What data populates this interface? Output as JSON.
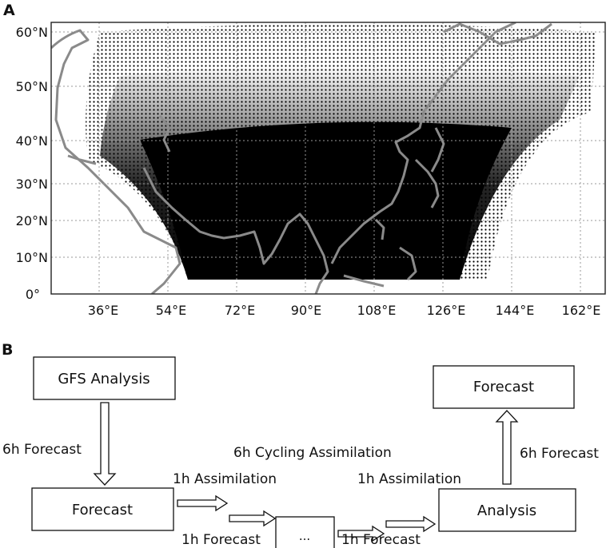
{
  "panel_a": {
    "letter": "A",
    "lat_labels": [
      "60°N",
      "50°N",
      "40°N",
      "30°N",
      "20°N",
      "10°N",
      "0°"
    ],
    "lon_labels": [
      "36°E",
      "54°E",
      "72°E",
      "90°E",
      "108°E",
      "126°E",
      "144°E",
      "162°E"
    ],
    "colors": {
      "domain": "#000000",
      "coast": "#8a8a8a",
      "grid": "#9a9a9a"
    }
  },
  "panel_b": {
    "letter": "B",
    "boxes": {
      "gfs": "GFS Analysis",
      "forecast_left": "Forecast",
      "dots": "...",
      "analysis": "Analysis",
      "forecast_top": "Forecast"
    },
    "labels": {
      "six_h_forecast_left": "6h Forecast",
      "cycling": "6h Cycling Assimilation",
      "assim1": "1h Assimilation",
      "assim2": "1h Assimilation",
      "fc1": "1h Forecast",
      "fc2": "1h Forecast",
      "six_h_forecast_right": "6h Forecast"
    }
  }
}
